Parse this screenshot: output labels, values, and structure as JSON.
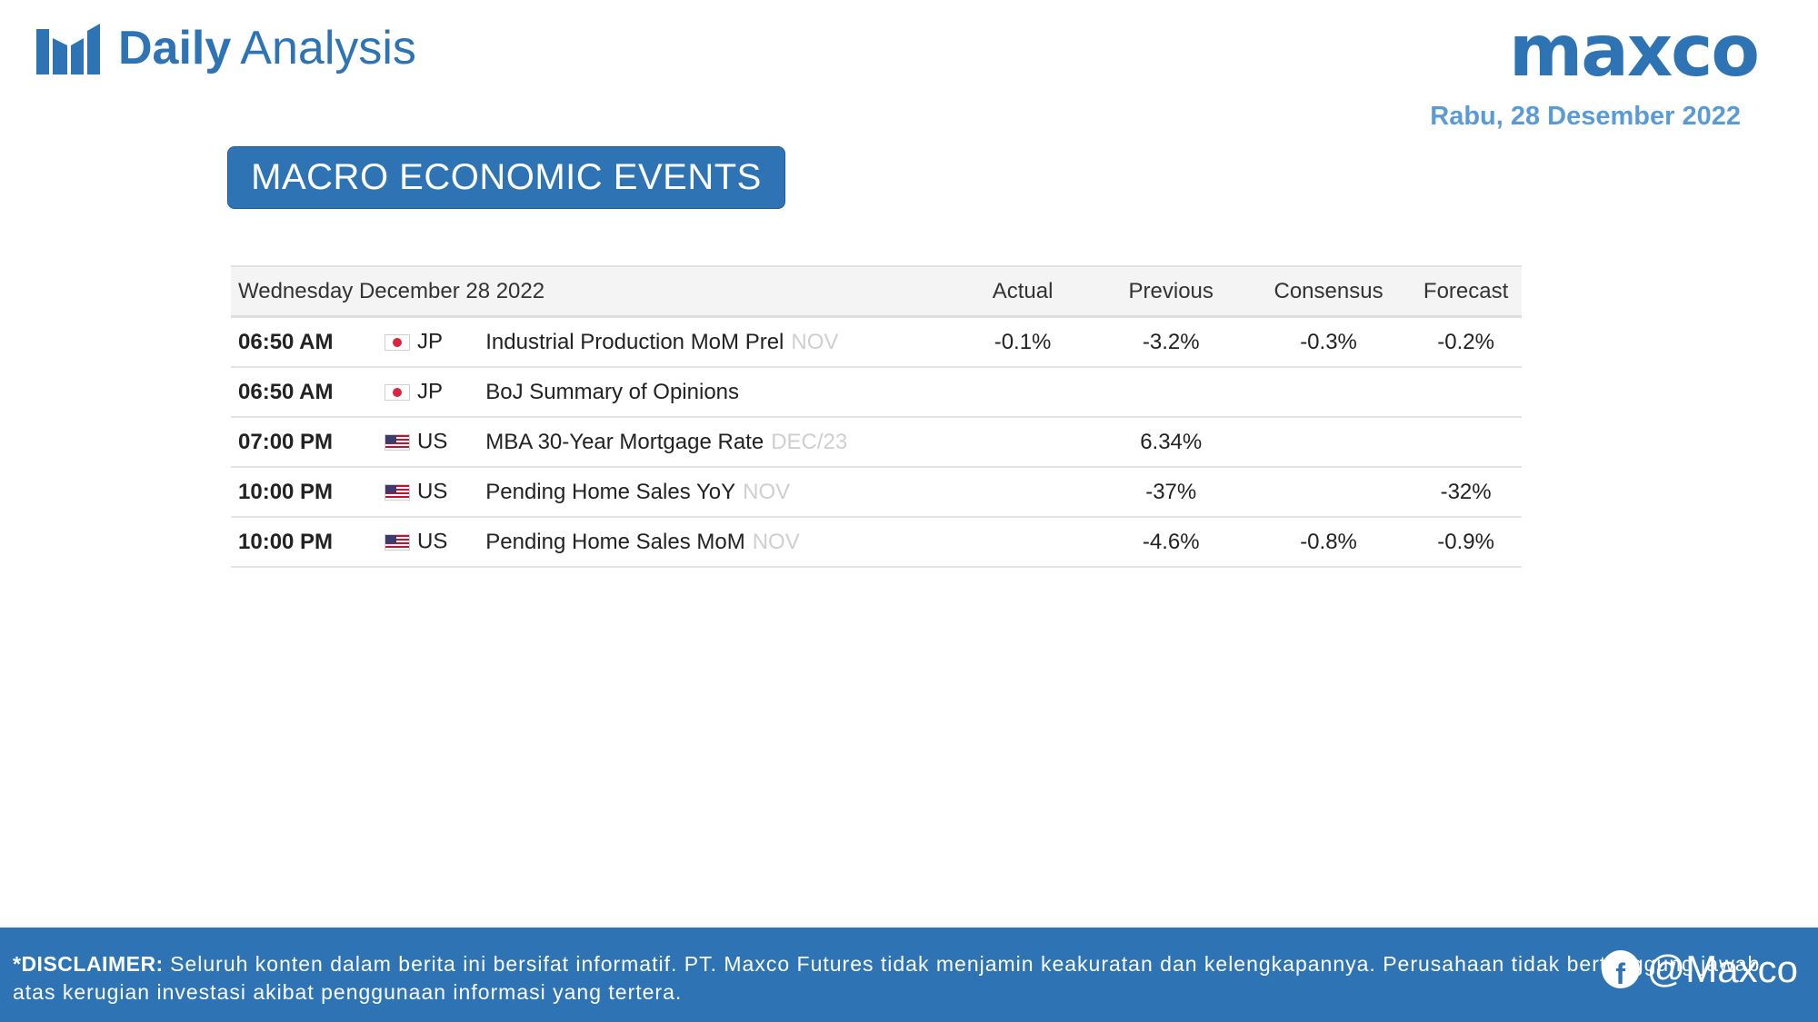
{
  "header": {
    "title_bold": "Daily",
    "title_light": "Analysis",
    "logo_text": "maxco",
    "date": "Rabu, 28 Desember 2022"
  },
  "section": {
    "title": "MACRO ECONOMIC EVENTS"
  },
  "calendar": {
    "columns": {
      "date": "Wednesday December 28 2022",
      "actual": "Actual",
      "previous": "Previous",
      "consensus": "Consensus",
      "forecast": "Forecast"
    },
    "rows": [
      {
        "time": "06:50 AM",
        "flag": "flag-jp-icon",
        "country": "JP",
        "event": "Industrial Production MoM Prel",
        "ref": "NOV",
        "actual": "-0.1%",
        "previous": "-3.2%",
        "consensus": "-0.3%",
        "forecast": "-0.2%"
      },
      {
        "time": "06:50 AM",
        "flag": "flag-jp-icon",
        "country": "JP",
        "event": "BoJ Summary of Opinions",
        "ref": "",
        "actual": "",
        "previous": "",
        "consensus": "",
        "forecast": ""
      },
      {
        "time": "07:00 PM",
        "flag": "flag-us-icon",
        "country": "US",
        "event": "MBA 30-Year Mortgage Rate",
        "ref": "DEC/23",
        "actual": "",
        "previous": "6.34%",
        "consensus": "",
        "forecast": ""
      },
      {
        "time": "10:00 PM",
        "flag": "flag-us-icon",
        "country": "US",
        "event": "Pending Home Sales YoY",
        "ref": "NOV",
        "actual": "",
        "previous": "-37%",
        "consensus": "",
        "forecast": "-32%"
      },
      {
        "time": "10:00 PM",
        "flag": "flag-us-icon",
        "country": "US",
        "event": "Pending Home Sales MoM",
        "ref": "NOV",
        "actual": "",
        "previous": "-4.6%",
        "consensus": "-0.8%",
        "forecast": "-0.9%"
      }
    ]
  },
  "footer": {
    "disclaimer_label": "*DISCLAIMER:",
    "disclaimer_text": "Seluruh konten dalam berita ini bersifat informatif. PT. Maxco Futures tidak menjamin keakuratan dan kelengkapannya. Perusahaan tidak bertanggung jawab atas kerugian investasi akibat penggunaan informasi yang tertera.",
    "social_icon": "facebook-icon",
    "social_handle": "@Maxco"
  },
  "colors": {
    "brand_blue": "#2E74B5",
    "date_blue": "#5B9BD5",
    "negative": "#8B0000",
    "positive": "#1E6E1E"
  }
}
